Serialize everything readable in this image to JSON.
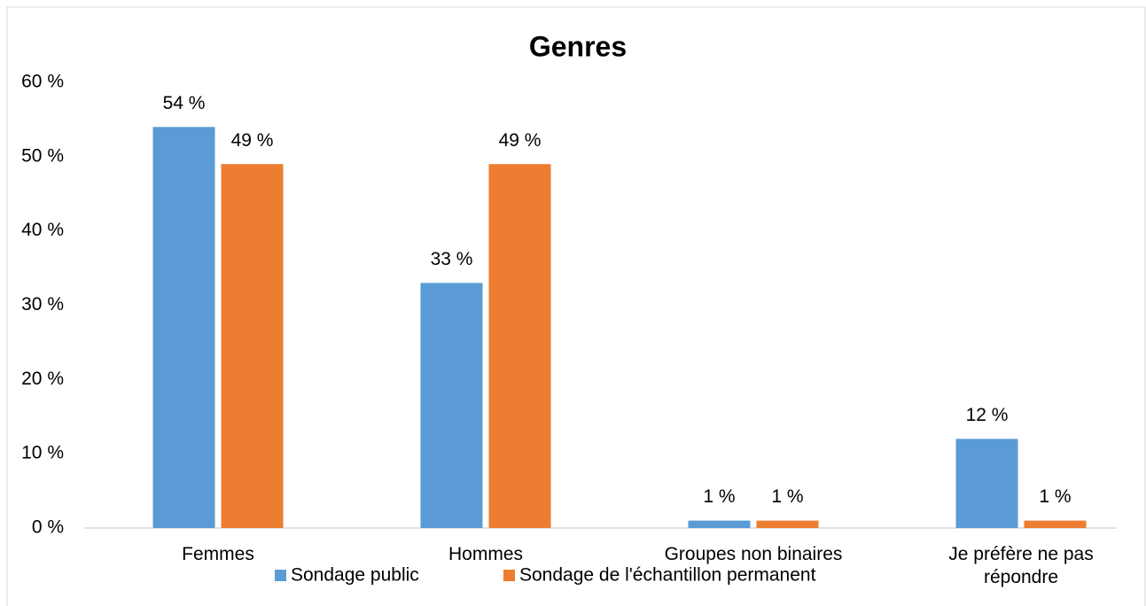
{
  "chart_data": {
    "type": "bar",
    "title": "Genres",
    "categories": [
      "Femmes",
      "Hommes",
      "Groupes non binaires",
      "Je préfère ne pas répondre"
    ],
    "series": [
      {
        "name": "Sondage public",
        "color": "#5b9bd5",
        "values": [
          54,
          33,
          1,
          12
        ],
        "value_labels": [
          "54 %",
          "33 %",
          "1 %",
          "12 %"
        ]
      },
      {
        "name": "Sondage de l'échantillon permanent",
        "color": "#ed7d31",
        "values": [
          49,
          49,
          1,
          1
        ],
        "value_labels": [
          "49 %",
          "49 %",
          "1 %",
          "1 %"
        ]
      }
    ],
    "ylim": [
      0,
      60
    ],
    "yticks": [
      {
        "value": 0,
        "label": "0 %"
      },
      {
        "value": 10,
        "label": "10 %"
      },
      {
        "value": 20,
        "label": "20 %"
      },
      {
        "value": 30,
        "label": "30 %"
      },
      {
        "value": 40,
        "label": "40 %"
      },
      {
        "value": 50,
        "label": "50 %"
      },
      {
        "value": 60,
        "label": "60 %"
      }
    ],
    "grid": false,
    "legend": "bottom"
  }
}
